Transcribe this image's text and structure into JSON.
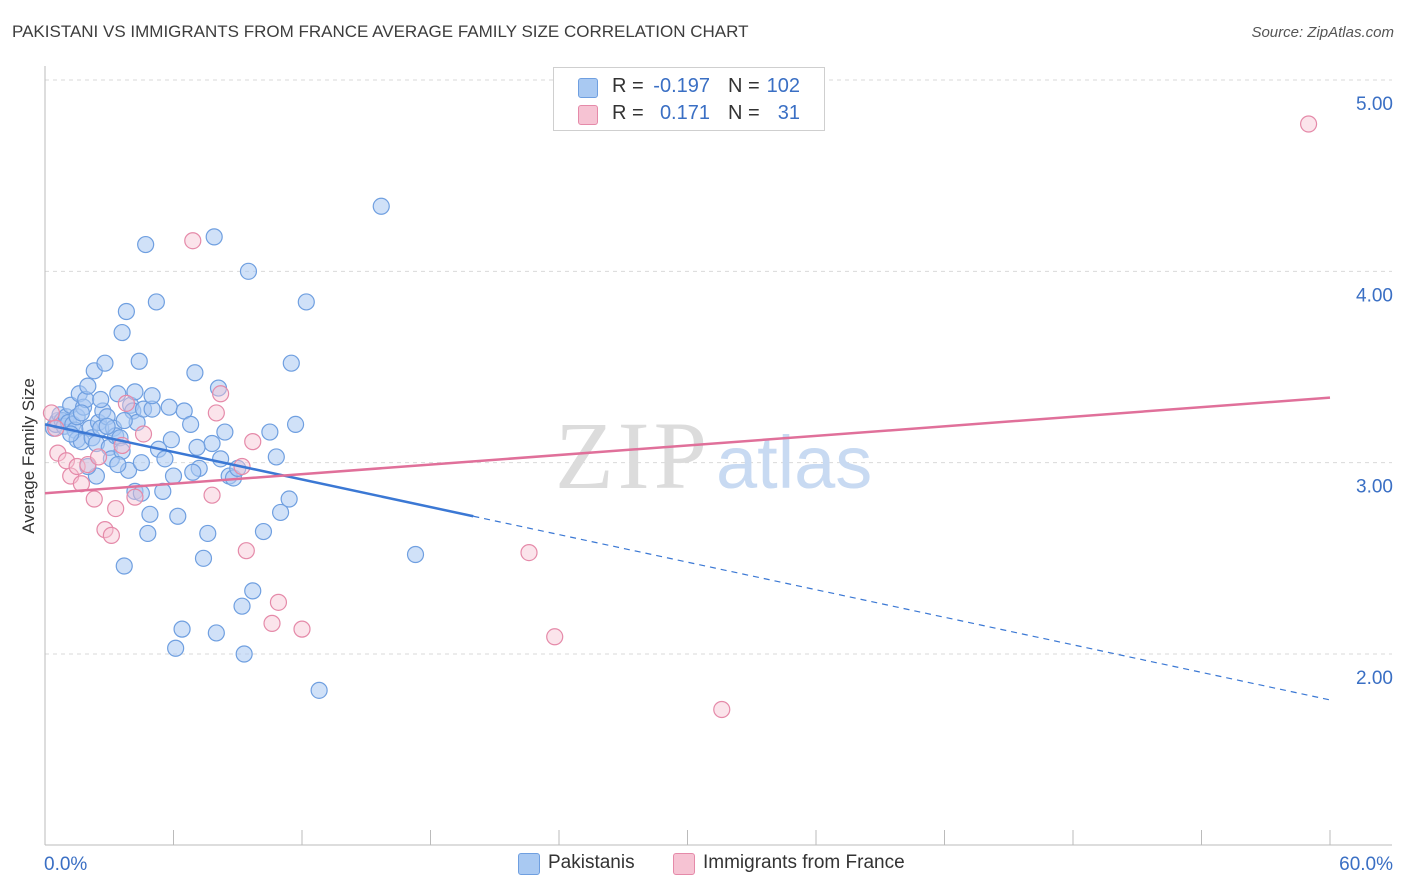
{
  "title": "PAKISTANI VS IMMIGRANTS FROM FRANCE AVERAGE FAMILY SIZE CORRELATION CHART",
  "source": "Source: ZipAtlas.com",
  "watermark": {
    "zip": "ZIP",
    "atlas": "atlas"
  },
  "legend": {
    "rows": [
      {
        "r_label": "R =",
        "r_value": "-0.197",
        "n_label": "N =",
        "n_value": "102",
        "color": "#a9c9f2",
        "border": "#6f9fe0"
      },
      {
        "r_label": "R =",
        "r_value": "0.171",
        "n_label": "N =",
        "n_value": "31",
        "color": "#f6c3d3",
        "border": "#e58aa9"
      }
    ]
  },
  "bottom_legend": {
    "items": [
      {
        "label": "Pakistanis",
        "color": "#a9c9f2",
        "border": "#6f9fe0"
      },
      {
        "label": "Immigrants from France",
        "color": "#f6c3d3",
        "border": "#e58aa9"
      }
    ]
  },
  "chart_data": {
    "type": "scatter",
    "title": "PAKISTANI VS IMMIGRANTS FROM FRANCE AVERAGE FAMILY SIZE CORRELATION CHART",
    "xlabel": "",
    "ylabel": "Average Family Size",
    "xlim": [
      0,
      60
    ],
    "ylim": [
      1.0,
      5.2
    ],
    "x_tick_labels": [
      "0.0%",
      "60.0%"
    ],
    "y_ticks": [
      2.0,
      3.0,
      4.0,
      5.0
    ],
    "y_tick_labels": [
      "2.00",
      "3.00",
      "4.00",
      "5.00"
    ],
    "grid": "horizontal dashed",
    "legend_position": "top-center",
    "colors": {
      "pakistanis": "#6f9fe0",
      "france": "#e58aa9",
      "blue_line": "#3b78d4",
      "pink_line": "#e0709a",
      "axis_text": "#3a6fc4"
    },
    "series": [
      {
        "name": "Pakistanis",
        "R": -0.197,
        "N": 102,
        "points": [
          [
            0.4,
            3.18
          ],
          [
            0.5,
            3.2
          ],
          [
            0.6,
            3.22
          ],
          [
            0.7,
            3.25
          ],
          [
            0.8,
            3.22
          ],
          [
            0.9,
            3.19
          ],
          [
            1.0,
            3.24
          ],
          [
            1.1,
            3.21
          ],
          [
            1.2,
            3.3
          ],
          [
            1.3,
            3.2
          ],
          [
            1.4,
            3.17
          ],
          [
            1.5,
            3.24
          ],
          [
            1.5,
            3.12
          ],
          [
            1.6,
            3.36
          ],
          [
            1.7,
            3.11
          ],
          [
            1.8,
            3.29
          ],
          [
            1.9,
            3.33
          ],
          [
            2.0,
            3.4
          ],
          [
            2.1,
            3.18
          ],
          [
            2.2,
            3.13
          ],
          [
            2.3,
            3.48
          ],
          [
            2.4,
            3.1
          ],
          [
            2.5,
            3.21
          ],
          [
            2.6,
            3.18
          ],
          [
            2.7,
            3.27
          ],
          [
            2.8,
            3.52
          ],
          [
            2.9,
            3.24
          ],
          [
            3.0,
            3.08
          ],
          [
            3.1,
            3.02
          ],
          [
            3.2,
            3.18
          ],
          [
            3.3,
            3.14
          ],
          [
            3.4,
            3.36
          ],
          [
            3.5,
            3.13
          ],
          [
            3.6,
            3.68
          ],
          [
            3.7,
            2.46
          ],
          [
            3.8,
            3.79
          ],
          [
            3.9,
            2.96
          ],
          [
            4.0,
            3.3
          ],
          [
            4.1,
            3.27
          ],
          [
            4.2,
            3.37
          ],
          [
            4.3,
            3.21
          ],
          [
            4.4,
            3.53
          ],
          [
            4.5,
            3.0
          ],
          [
            4.6,
            3.28
          ],
          [
            4.7,
            4.14
          ],
          [
            4.8,
            2.63
          ],
          [
            4.9,
            2.73
          ],
          [
            5.0,
            3.28
          ],
          [
            5.2,
            3.84
          ],
          [
            5.3,
            3.07
          ],
          [
            5.5,
            2.85
          ],
          [
            5.6,
            3.02
          ],
          [
            5.8,
            3.29
          ],
          [
            6.0,
            2.93
          ],
          [
            6.2,
            2.72
          ],
          [
            6.4,
            2.13
          ],
          [
            6.5,
            3.27
          ],
          [
            6.8,
            3.2
          ],
          [
            7.0,
            3.47
          ],
          [
            7.2,
            2.97
          ],
          [
            7.4,
            2.5
          ],
          [
            7.6,
            2.63
          ],
          [
            7.8,
            3.1
          ],
          [
            7.9,
            4.18
          ],
          [
            8.0,
            2.11
          ],
          [
            8.2,
            3.02
          ],
          [
            8.4,
            3.16
          ],
          [
            8.6,
            2.93
          ],
          [
            8.8,
            2.92
          ],
          [
            9.0,
            2.97
          ],
          [
            9.3,
            2.0
          ],
          [
            9.5,
            4.0
          ],
          [
            9.7,
            2.33
          ],
          [
            10.2,
            2.64
          ],
          [
            10.5,
            3.16
          ],
          [
            10.8,
            3.03
          ],
          [
            11.0,
            2.74
          ],
          [
            11.4,
            2.81
          ],
          [
            11.5,
            3.52
          ],
          [
            11.7,
            3.2
          ],
          [
            12.2,
            3.84
          ],
          [
            12.8,
            1.81
          ],
          [
            15.7,
            4.34
          ],
          [
            17.3,
            2.52
          ],
          [
            9.2,
            2.25
          ],
          [
            6.1,
            2.03
          ],
          [
            4.2,
            2.85
          ],
          [
            3.6,
            3.06
          ],
          [
            2.4,
            2.93
          ],
          [
            2.0,
            2.98
          ],
          [
            5.9,
            3.12
          ],
          [
            8.1,
            3.39
          ],
          [
            1.2,
            3.15
          ],
          [
            2.9,
            3.19
          ],
          [
            3.7,
            3.22
          ],
          [
            4.5,
            2.84
          ],
          [
            6.9,
            2.95
          ],
          [
            5.0,
            3.35
          ],
          [
            1.7,
            3.26
          ],
          [
            2.6,
            3.33
          ],
          [
            3.4,
            2.99
          ],
          [
            7.1,
            3.08
          ]
        ]
      },
      {
        "name": "Immigrants from France",
        "R": 0.171,
        "N": 31,
        "points": [
          [
            0.3,
            3.26
          ],
          [
            0.5,
            3.18
          ],
          [
            0.6,
            3.05
          ],
          [
            1.0,
            3.01
          ],
          [
            1.2,
            2.93
          ],
          [
            1.5,
            2.98
          ],
          [
            1.7,
            2.89
          ],
          [
            2.0,
            2.99
          ],
          [
            2.3,
            2.81
          ],
          [
            2.5,
            3.03
          ],
          [
            2.8,
            2.65
          ],
          [
            3.1,
            2.62
          ],
          [
            3.3,
            2.76
          ],
          [
            3.6,
            3.09
          ],
          [
            3.8,
            3.31
          ],
          [
            4.2,
            2.82
          ],
          [
            4.6,
            3.15
          ],
          [
            6.9,
            4.16
          ],
          [
            7.8,
            2.83
          ],
          [
            8.2,
            3.36
          ],
          [
            8.0,
            3.26
          ],
          [
            9.2,
            2.98
          ],
          [
            9.4,
            2.54
          ],
          [
            9.7,
            3.11
          ],
          [
            10.9,
            2.27
          ],
          [
            10.6,
            2.16
          ],
          [
            12.0,
            2.13
          ],
          [
            22.6,
            2.53
          ],
          [
            23.8,
            2.09
          ],
          [
            31.6,
            1.71
          ],
          [
            59.0,
            4.77
          ]
        ]
      }
    ],
    "trend_lines": [
      {
        "series": "Pakistanis",
        "solid": [
          [
            0,
            3.2
          ],
          [
            20,
            2.72
          ]
        ],
        "dashed": [
          [
            20,
            2.72
          ],
          [
            60,
            1.76
          ]
        ]
      },
      {
        "series": "Immigrants from France",
        "solid": [
          [
            0,
            2.84
          ],
          [
            60,
            3.34
          ]
        ]
      }
    ]
  }
}
